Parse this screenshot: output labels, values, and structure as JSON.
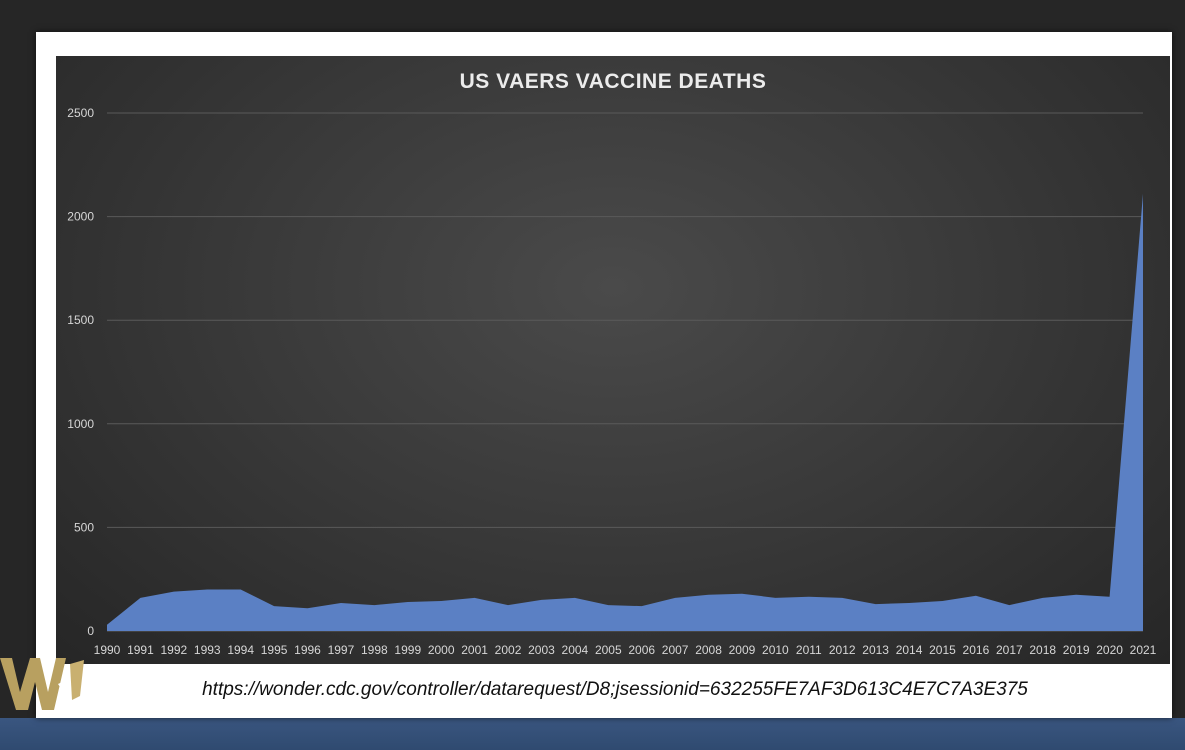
{
  "colors": {
    "area_fill": "#5b80c4",
    "panel_bg": "#3a3a3a",
    "frame_bg": "#ffffff",
    "title_text": "#ececec",
    "tick_text": "#d6d6d6",
    "gridline": "#5a5a5a"
  },
  "logo": {
    "icon": "w-logo-icon"
  },
  "source": {
    "url": "https://wonder.cdc.gov/controller/datarequest/D8;jsessionid=632255FE7AF3D613C4E7C7A3E375"
  },
  "chart_data": {
    "type": "area",
    "title": "US VAERS VACCINE DEATHS",
    "xlabel": "",
    "ylabel": "",
    "ylim": [
      0,
      2500
    ],
    "yticks": [
      0,
      500,
      1000,
      1500,
      2000,
      2500
    ],
    "grid": true,
    "legend": "none",
    "categories": [
      "1990",
      "1991",
      "1992",
      "1993",
      "1994",
      "1995",
      "1996",
      "1997",
      "1998",
      "1999",
      "2000",
      "2001",
      "2002",
      "2003",
      "2004",
      "2005",
      "2006",
      "2007",
      "2008",
      "2009",
      "2010",
      "2011",
      "2012",
      "2013",
      "2014",
      "2015",
      "2016",
      "2017",
      "2018",
      "2019",
      "2020",
      "2021"
    ],
    "values": [
      30,
      160,
      190,
      200,
      200,
      120,
      110,
      135,
      125,
      140,
      145,
      160,
      125,
      150,
      160,
      125,
      120,
      160,
      175,
      180,
      160,
      165,
      160,
      130,
      135,
      145,
      170,
      125,
      160,
      175,
      165,
      2110
    ]
  }
}
